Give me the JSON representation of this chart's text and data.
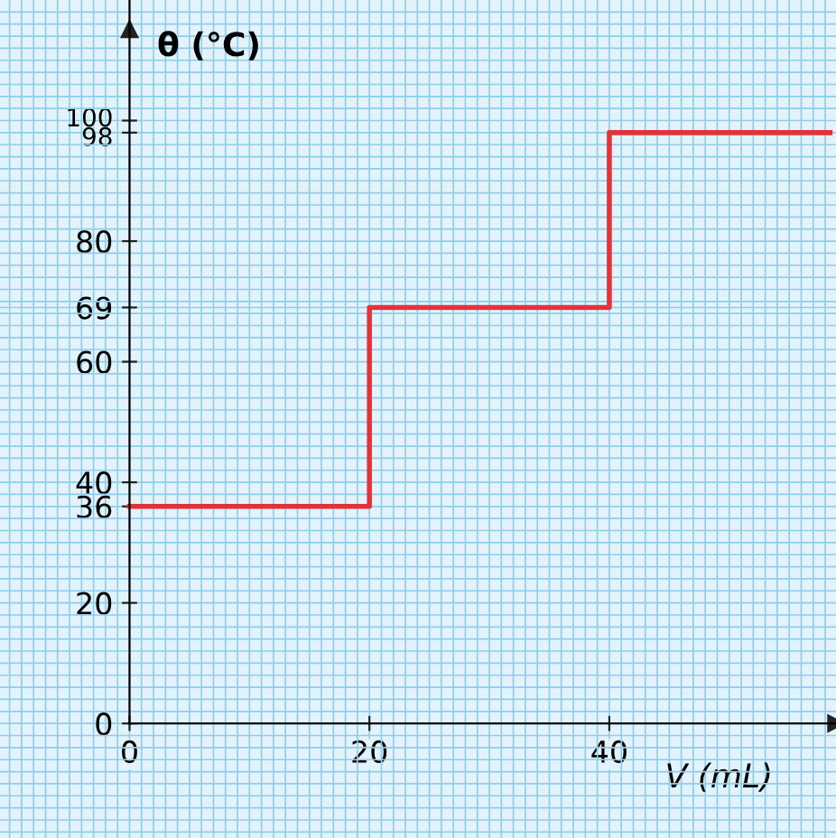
{
  "chart_data": {
    "type": "step",
    "xlabel": "V (mL)",
    "ylabel": "θ (°C)",
    "x": [
      0,
      20,
      40,
      58.4
    ],
    "series": [
      {
        "color": "#e2333a",
        "values": [
          36,
          69,
          98,
          98
        ]
      }
    ],
    "xlim": [
      -10.8,
      58.9
    ],
    "ylim": [
      -19,
      120
    ],
    "xticks": [
      0,
      20,
      40
    ],
    "yticks": [
      0,
      20,
      36,
      40,
      60,
      69,
      80,
      98,
      100
    ],
    "grid": true
  }
}
